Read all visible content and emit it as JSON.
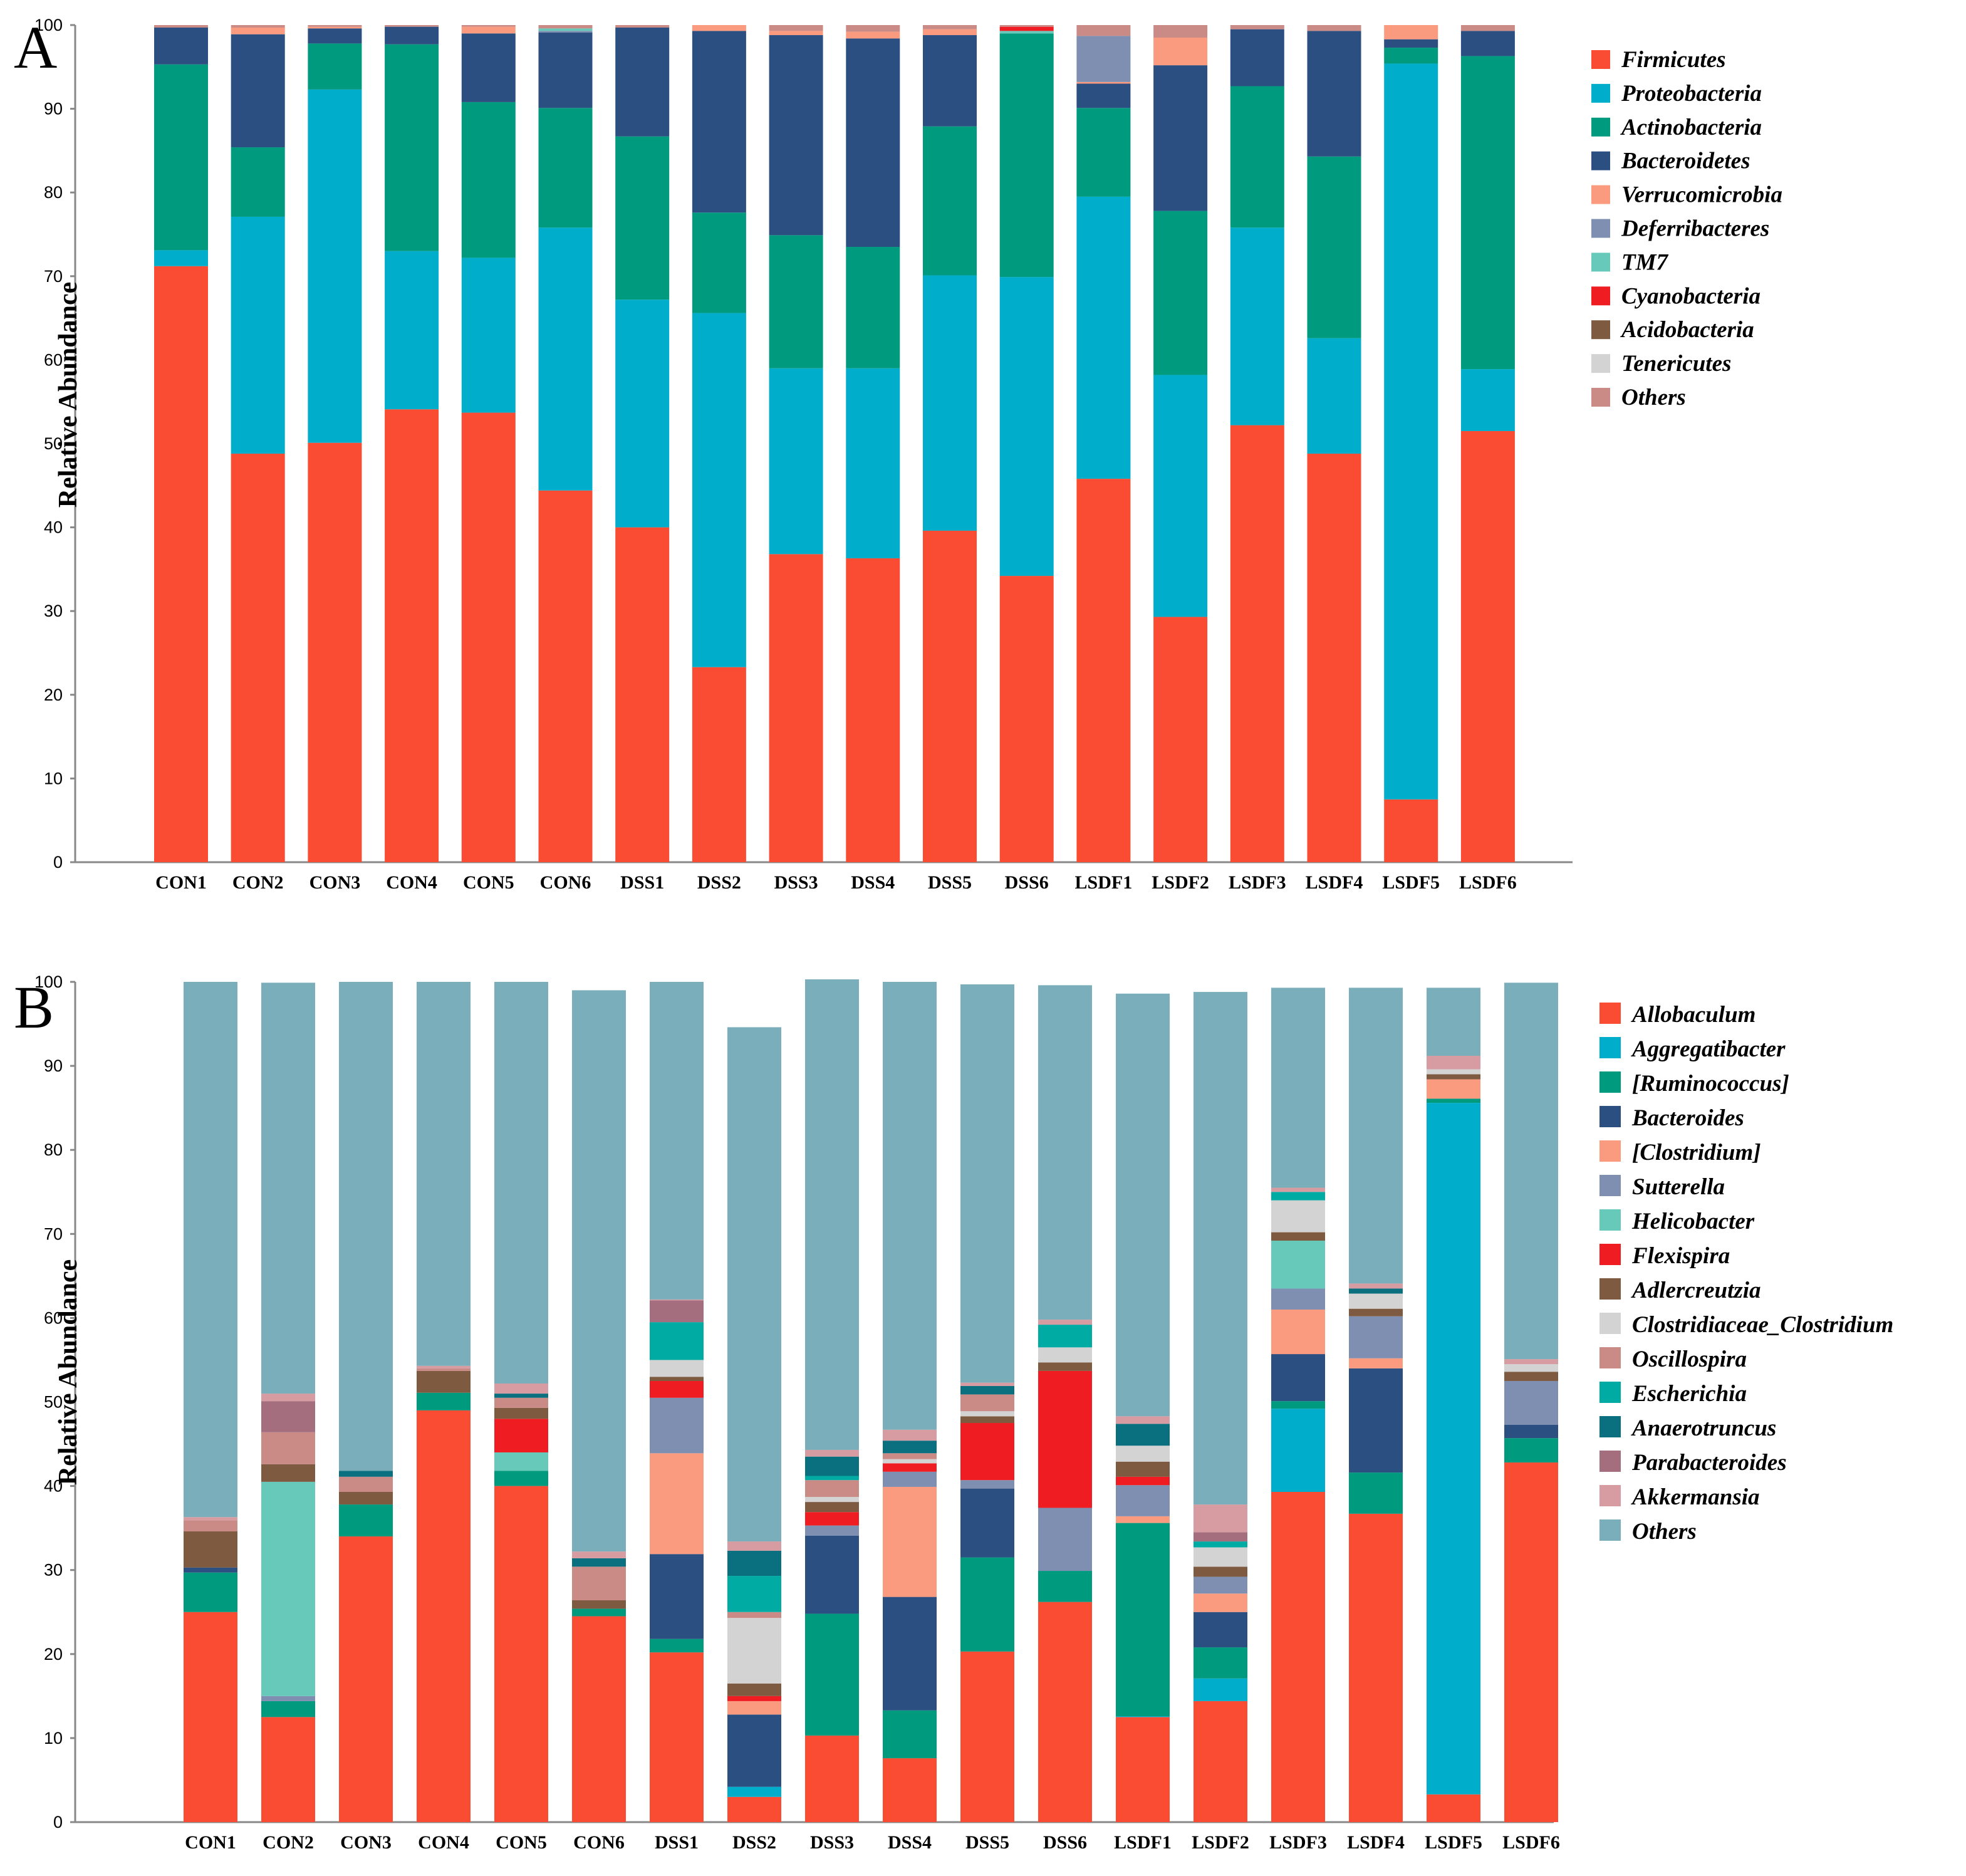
{
  "chart_data": [
    {
      "panel": "A",
      "type": "bar",
      "stacked": true,
      "ylabel": "Relative Abundance",
      "xlabel": "",
      "ylim": [
        0,
        100
      ],
      "yticks": [
        0,
        10,
        20,
        30,
        40,
        50,
        60,
        70,
        80,
        90,
        100
      ],
      "legend_position": "right",
      "categories": [
        "CON1",
        "CON2",
        "CON3",
        "CON4",
        "CON5",
        "CON6",
        "DSS1",
        "DSS2",
        "DSS3",
        "DSS4",
        "DSS5",
        "DSS6",
        "LSDF1",
        "LSDF2",
        "LSDF3",
        "LSDF4",
        "LSDF5",
        "LSDF6"
      ],
      "series": [
        {
          "name": "Firmicutes",
          "color": "#f94c33",
          "values": [
            71.2,
            48.8,
            50.1,
            54.1,
            53.7,
            44.4,
            40.0,
            23.3,
            36.8,
            36.3,
            39.6,
            34.2,
            45.8,
            29.3,
            52.2,
            48.8,
            7.5,
            51.5
          ]
        },
        {
          "name": "Proteobacteria",
          "color": "#00aecb",
          "values": [
            1.9,
            28.3,
            42.2,
            18.9,
            18.5,
            31.4,
            27.2,
            42.3,
            22.2,
            22.7,
            30.5,
            35.7,
            33.7,
            28.9,
            23.6,
            13.8,
            87.9,
            7.4
          ]
        },
        {
          "name": "Actinobacteria",
          "color": "#009a7f",
          "values": [
            22.2,
            8.3,
            5.5,
            24.7,
            18.6,
            14.3,
            19.5,
            12.0,
            15.9,
            14.5,
            17.8,
            29.1,
            10.6,
            19.6,
            16.9,
            21.7,
            1.9,
            37.4
          ]
        },
        {
          "name": "Bacteroidetes",
          "color": "#2c4f82",
          "values": [
            4.4,
            13.5,
            1.8,
            2.1,
            8.2,
            9.0,
            13.0,
            21.7,
            23.9,
            24.9,
            10.9,
            0.0,
            2.9,
            17.4,
            6.8,
            15.0,
            1.0,
            3.0
          ]
        },
        {
          "name": "Verrucomicrobia",
          "color": "#fa9a7e",
          "values": [
            0.0,
            0.8,
            0.2,
            0.0,
            0.8,
            0.0,
            0.0,
            0.7,
            0.5,
            0.8,
            0.7,
            0.0,
            0.2,
            3.3,
            0.0,
            0.0,
            1.7,
            0.0
          ]
        },
        {
          "name": "Deferribacteres",
          "color": "#7e8fb2",
          "values": [
            0.0,
            0.0,
            0.0,
            0.0,
            0.0,
            0.2,
            0.0,
            0.0,
            0.0,
            0.0,
            0.0,
            0.0,
            5.5,
            0.0,
            0.0,
            0.0,
            0.0,
            0.0
          ]
        },
        {
          "name": "TM7",
          "color": "#67c9b9",
          "values": [
            0.0,
            0.0,
            0.0,
            0.0,
            0.0,
            0.3,
            0.0,
            0.0,
            0.0,
            0.0,
            0.0,
            0.3,
            0.0,
            0.0,
            0.0,
            0.0,
            0.0,
            0.0
          ]
        },
        {
          "name": "Cyanobacteria",
          "color": "#ef1c22",
          "values": [
            0.0,
            0.0,
            0.0,
            0.0,
            0.0,
            0.0,
            0.0,
            0.0,
            0.0,
            0.0,
            0.0,
            0.5,
            0.0,
            0.0,
            0.0,
            0.0,
            0.0,
            0.0
          ]
        },
        {
          "name": "Acidobacteria",
          "color": "#7e5b40",
          "values": [
            0.0,
            0.0,
            0.0,
            0.0,
            0.0,
            0.0,
            0.0,
            0.0,
            0.0,
            0.0,
            0.0,
            0.0,
            0.0,
            0.0,
            0.0,
            0.0,
            0.0,
            0.0
          ]
        },
        {
          "name": "Tenericutes",
          "color": "#d3d3d3",
          "values": [
            0.0,
            0.0,
            0.0,
            0.0,
            0.0,
            0.0,
            0.0,
            0.0,
            0.0,
            0.0,
            0.0,
            0.0,
            0.0,
            0.0,
            0.0,
            0.0,
            0.0,
            0.0
          ]
        },
        {
          "name": "Others",
          "color": "#ca8a86",
          "values": [
            0.3,
            0.3,
            0.2,
            0.2,
            0.2,
            0.4,
            0.3,
            0.0,
            0.7,
            0.8,
            0.5,
            0.2,
            1.3,
            1.5,
            0.5,
            0.7,
            0.0,
            0.7
          ]
        }
      ]
    },
    {
      "panel": "B",
      "type": "bar",
      "stacked": true,
      "ylabel": "Relative Abundance",
      "xlabel": "",
      "ylim": [
        0,
        100
      ],
      "yticks": [
        0,
        10,
        20,
        30,
        40,
        50,
        60,
        70,
        80,
        90,
        100
      ],
      "legend_position": "right",
      "categories": [
        "CON1",
        "CON2",
        "CON3",
        "CON4",
        "CON5",
        "CON6",
        "DSS1",
        "DSS2",
        "DSS3",
        "DSS4",
        "DSS5",
        "DSS6",
        "LSDF1",
        "LSDF2",
        "LSDF3",
        "LSDF4",
        "LSDF5",
        "LSDF6"
      ],
      "series": [
        {
          "name": "Allobaculum",
          "color": "#f94c33",
          "values": [
            25.0,
            12.5,
            34.0,
            49.0,
            40.0,
            24.5,
            20.2,
            3.0,
            10.3,
            7.6,
            20.3,
            26.2,
            12.5,
            14.4,
            39.3,
            36.7,
            3.3,
            42.8
          ]
        },
        {
          "name": "Aggregatibacter",
          "color": "#00aecb",
          "values": [
            0.0,
            0.0,
            0.0,
            0.0,
            0.0,
            0.0,
            0.0,
            1.2,
            0.0,
            0.0,
            0.0,
            0.0,
            0.1,
            2.7,
            9.9,
            0.0,
            82.3,
            0.0
          ]
        },
        {
          "name": "[Ruminococcus]",
          "color": "#009a7f",
          "values": [
            4.7,
            1.9,
            3.8,
            2.1,
            1.8,
            0.9,
            1.6,
            0.0,
            14.5,
            5.7,
            11.2,
            3.7,
            23.0,
            3.7,
            0.9,
            4.9,
            0.5,
            2.9
          ]
        },
        {
          "name": "Bacteroides",
          "color": "#2c4f82",
          "values": [
            0.6,
            0.0,
            0.0,
            0.0,
            0.0,
            0.0,
            10.1,
            8.6,
            9.3,
            13.5,
            8.2,
            0.0,
            0.0,
            4.2,
            5.6,
            12.4,
            0.0,
            1.6
          ]
        },
        {
          "name": "[Clostridium]",
          "color": "#fa9a7e",
          "values": [
            0.0,
            0.0,
            0.0,
            0.0,
            0.0,
            0.0,
            12.0,
            1.6,
            0.0,
            13.1,
            0.0,
            0.0,
            0.8,
            2.2,
            5.3,
            1.2,
            2.3,
            0.0
          ]
        },
        {
          "name": "Sutterella",
          "color": "#7e8fb2",
          "values": [
            0.0,
            0.6,
            0.0,
            0.0,
            0.0,
            0.0,
            6.6,
            0.0,
            1.2,
            1.8,
            1.0,
            7.5,
            3.7,
            2.0,
            2.5,
            5.0,
            0.0,
            5.2
          ]
        },
        {
          "name": "Helicobacter",
          "color": "#67c9b9",
          "values": [
            0.0,
            25.5,
            0.0,
            0.0,
            2.2,
            0.0,
            0.0,
            0.0,
            0.0,
            0.0,
            0.0,
            0.0,
            0.0,
            0.0,
            5.7,
            0.0,
            0.0,
            0.0
          ]
        },
        {
          "name": "Flexispira",
          "color": "#ef1c22",
          "values": [
            0.0,
            0.0,
            0.0,
            0.0,
            4.0,
            0.0,
            2.0,
            0.6,
            1.6,
            1.0,
            6.8,
            16.3,
            1.0,
            0.0,
            0.0,
            0.0,
            0.0,
            0.0
          ]
        },
        {
          "name": "Adlercreutzia",
          "color": "#7e5b40",
          "values": [
            4.3,
            2.1,
            1.5,
            2.6,
            1.3,
            1.0,
            0.5,
            1.5,
            1.2,
            0.0,
            0.8,
            1.0,
            1.8,
            1.2,
            1.0,
            0.9,
            0.6,
            1.1
          ]
        },
        {
          "name": "Clostridiaceae_Clostridium",
          "color": "#d3d3d3",
          "values": [
            0.0,
            0.0,
            0.0,
            0.0,
            0.0,
            0.0,
            2.0,
            7.8,
            0.6,
            0.5,
            0.6,
            1.8,
            1.9,
            2.3,
            3.8,
            1.8,
            0.6,
            0.9
          ]
        },
        {
          "name": "Oscillospira",
          "color": "#ca8a86",
          "values": [
            1.3,
            3.8,
            1.8,
            0.3,
            1.2,
            4.0,
            0.0,
            0.7,
            2.0,
            0.7,
            2.0,
            0.0,
            0.0,
            0.0,
            0.0,
            0.0,
            0.0,
            0.0
          ]
        },
        {
          "name": "Escherichia",
          "color": "#00aba4",
          "values": [
            0.0,
            0.0,
            0.0,
            0.0,
            0.0,
            0.0,
            4.5,
            4.3,
            0.5,
            0.0,
            0.0,
            2.7,
            0.0,
            0.7,
            1.0,
            0.0,
            0.0,
            0.0
          ]
        },
        {
          "name": "Anaerotruncus",
          "color": "#0a6f7e",
          "values": [
            0.0,
            0.0,
            0.7,
            0.0,
            0.5,
            1.0,
            0.0,
            3.0,
            2.3,
            1.5,
            1.0,
            0.0,
            2.6,
            0.0,
            0.0,
            0.6,
            0.0,
            0.0
          ]
        },
        {
          "name": "Parabacteroides",
          "color": "#a56e7e",
          "values": [
            0.0,
            3.7,
            0.0,
            0.0,
            0.0,
            0.0,
            2.6,
            0.0,
            0.0,
            0.0,
            0.0,
            0.0,
            0.0,
            1.1,
            0.0,
            0.0,
            0.0,
            0.0
          ]
        },
        {
          "name": "Akkermansia",
          "color": "#d69ca2",
          "values": [
            0.4,
            0.9,
            0.0,
            0.3,
            1.2,
            0.8,
            0.1,
            1.1,
            0.8,
            1.3,
            0.4,
            0.6,
            0.9,
            3.3,
            0.5,
            0.6,
            1.6,
            0.6
          ]
        },
        {
          "name": "Others",
          "color": "#7aaeba",
          "values": [
            63.7,
            48.9,
            58.2,
            45.7,
            47.8,
            66.8,
            37.8,
            61.2,
            56.0,
            53.3,
            47.4,
            39.8,
            50.3,
            61.0,
            23.8,
            35.2,
            8.1,
            44.8
          ]
        }
      ]
    }
  ]
}
